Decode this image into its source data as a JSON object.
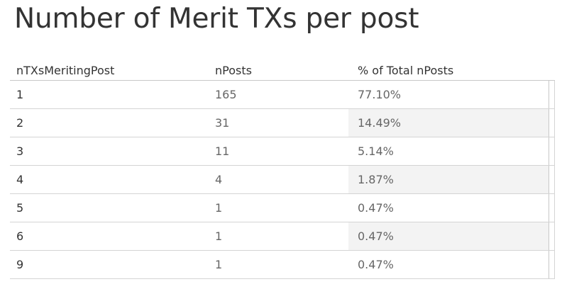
{
  "title": "Number of Merit TXs per post",
  "columns": [
    "nTXsMeritingPost",
    "nPosts",
    "% of Total nPosts"
  ],
  "chart_data": {
    "type": "table",
    "title": "Number of Merit TXs per post",
    "columns": [
      "nTXsMeritingPost",
      "nPosts",
      "% of Total nPosts"
    ],
    "rows": [
      [
        "1",
        "165",
        "77.10%"
      ],
      [
        "2",
        "31",
        "14.49%"
      ],
      [
        "3",
        "11",
        "5.14%"
      ],
      [
        "4",
        "4",
        "1.87%"
      ],
      [
        "5",
        "1",
        "0.47%"
      ],
      [
        "6",
        "1",
        "0.47%"
      ],
      [
        "9",
        "1",
        "0.47%"
      ]
    ]
  }
}
